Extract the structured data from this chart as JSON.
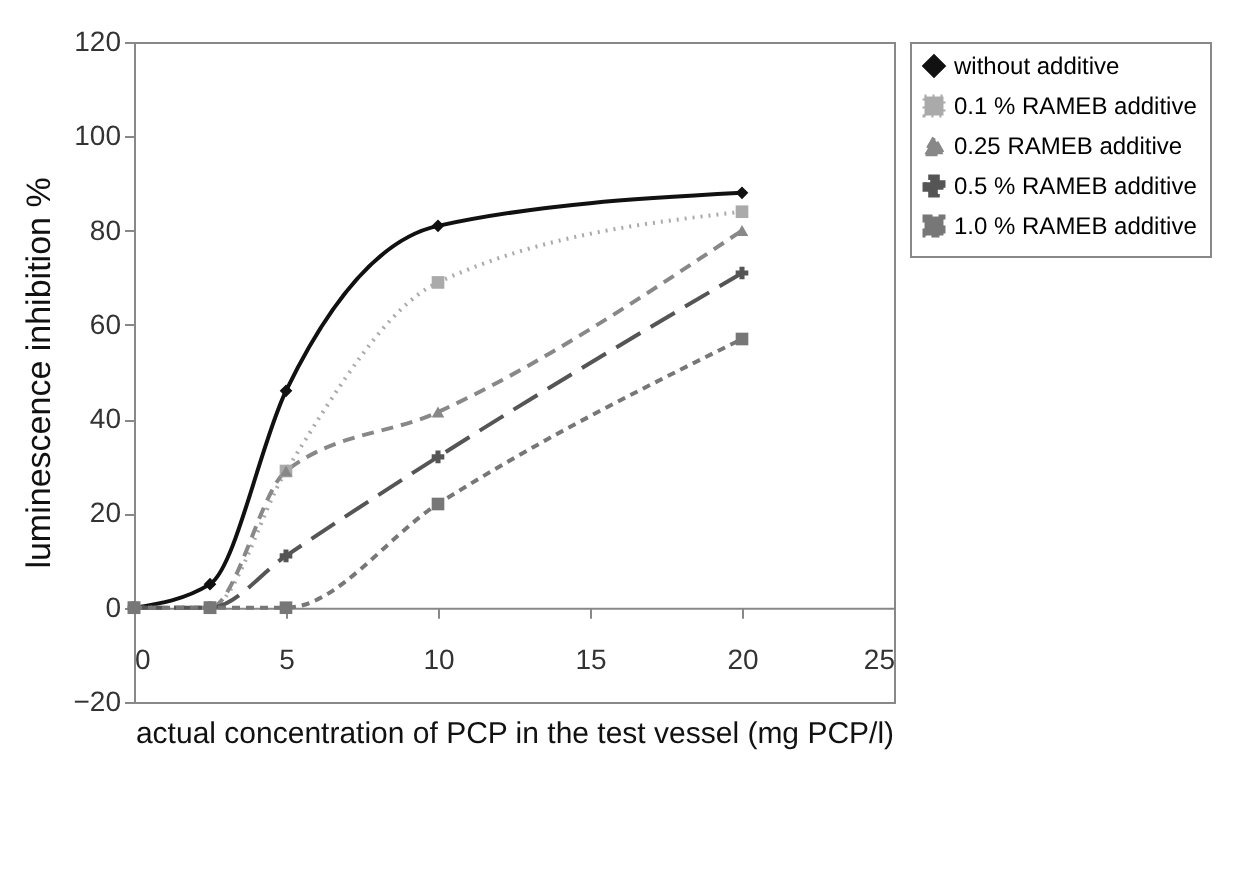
{
  "chart_data": {
    "type": "line",
    "xlabel": "actual concentration of PCP in the test vessel (mg PCP/l)",
    "ylabel": "luminescence inhibition %",
    "x": [
      0,
      2.5,
      5,
      10,
      20
    ],
    "series": [
      {
        "name": "without additive",
        "color": "#111111",
        "marker": "diamond",
        "line_style": "solid",
        "values": [
          0,
          5,
          46,
          81,
          88
        ]
      },
      {
        "name": "0.1 % RAMEB additive",
        "color": "#aaaaaa",
        "marker": "square",
        "line_style": "dotted",
        "values": [
          0,
          0,
          29,
          69,
          84
        ]
      },
      {
        "name": "0.25 RAMEB additive",
        "color": "#888888",
        "marker": "triangle",
        "line_style": "dashed",
        "values": [
          0,
          0,
          29,
          41.5,
          80
        ]
      },
      {
        "name": "0.5 % RAMEB additive",
        "color": "#555555",
        "marker": "cross",
        "line_style": "dashed",
        "values": [
          0,
          0,
          11,
          32,
          71
        ]
      },
      {
        "name": "1.0 % RAMEB additive",
        "color": "#777777",
        "marker": "square",
        "line_style": "dashed",
        "values": [
          0,
          0,
          0,
          22,
          57
        ]
      }
    ],
    "xlim": [
      0,
      25
    ],
    "xticks": [
      0,
      5,
      10,
      15,
      20,
      25
    ],
    "ylim": [
      -20,
      120
    ],
    "yticks": [
      -20,
      0,
      20,
      40,
      60,
      80,
      100,
      120
    ],
    "legend": "top right"
  }
}
